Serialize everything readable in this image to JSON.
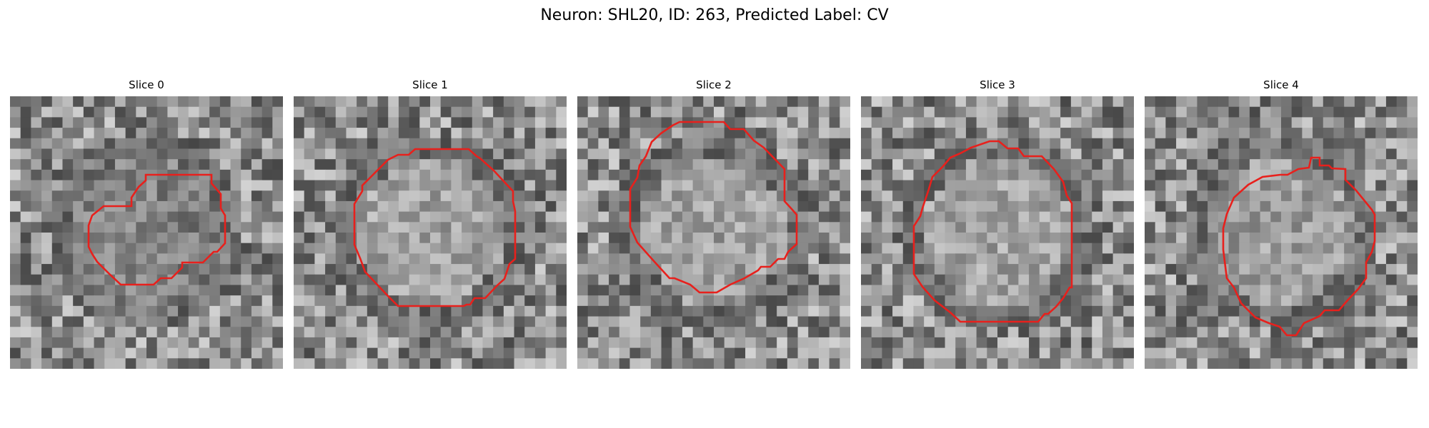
{
  "figure": {
    "title": "Neuron: SHL20, ID: 263, Predicted Label: CV"
  },
  "panels": [
    {
      "title": "Slice 0",
      "seed": 11,
      "center_brightness": 0.45,
      "contour_color": "#e8201c"
    },
    {
      "title": "Slice 1",
      "seed": 23,
      "center_brightness": 0.75,
      "contour_color": "#e8201c"
    },
    {
      "title": "Slice 2",
      "seed": 37,
      "center_brightness": 0.72,
      "contour_color": "#e8201c"
    },
    {
      "title": "Slice 3",
      "seed": 41,
      "center_brightness": 0.74,
      "contour_color": "#e8201c"
    },
    {
      "title": "Slice 4",
      "seed": 53,
      "center_brightness": 0.7,
      "contour_color": "#e8201c"
    }
  ],
  "colors": {
    "background": "#ffffff",
    "contour": "#e8201c"
  }
}
